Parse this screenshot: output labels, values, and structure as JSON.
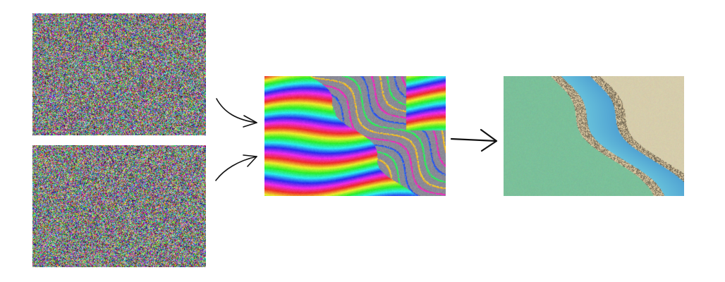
{
  "diagram": {
    "inputs": [
      {
        "id": "noise-top",
        "icon": "noise-image"
      },
      {
        "id": "noise-bottom",
        "icon": "noise-image"
      }
    ],
    "middle": {
      "id": "interferogram",
      "icon": "interferogram-fringes-image"
    },
    "output": {
      "id": "dem",
      "icon": "shaded-relief-elevation-image"
    },
    "colors": {
      "arrow": "#111111",
      "fringe_gray": "#8a8a93",
      "dem_green": "#7bc09a",
      "dem_cyan": "#6cc7dc",
      "dem_blue": "#4f8fc9",
      "dem_sand": "#d9c6a0"
    }
  }
}
